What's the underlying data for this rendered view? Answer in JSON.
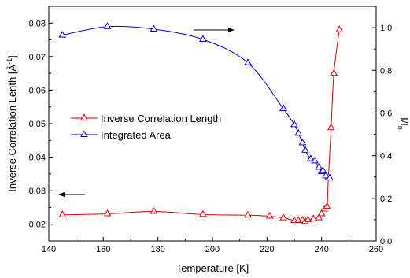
{
  "chart_data": {
    "type": "line",
    "xlabel": "Temperature [K]",
    "ylabel": "Inverse Correlation Lenth [Å",
    "ylabel_sup": "-1",
    "ylabel_end": "]",
    "y2label": "I/I",
    "y2label_sub": "n",
    "xlim": [
      140,
      260
    ],
    "ylim": [
      0.015,
      0.085
    ],
    "y2lim": [
      0.0,
      1.1
    ],
    "x_ticks": [
      140,
      160,
      180,
      200,
      220,
      240,
      260
    ],
    "y_ticks": [
      0.02,
      0.03,
      0.04,
      0.05,
      0.06,
      0.07,
      0.08
    ],
    "y2_ticks": [
      0.0,
      0.2,
      0.4,
      0.6,
      0.8,
      1.0
    ],
    "legend_position": "center-left",
    "grid": false,
    "series": [
      {
        "name": "Inverse Correlation Length",
        "axis": "left",
        "color": "#e00000",
        "marker": "triangle-open",
        "x": [
          145,
          161.5,
          178.5,
          196.5,
          213,
          221,
          226,
          230,
          231.5,
          233,
          234,
          235,
          237,
          239,
          240,
          241,
          242,
          242.5,
          243.5,
          244.5,
          246.5
        ],
        "y": [
          0.0228,
          0.0231,
          0.0238,
          0.0229,
          0.0227,
          0.0224,
          0.0219,
          0.0211,
          0.0211,
          0.0212,
          0.0208,
          0.0213,
          0.0216,
          0.0219,
          0.0231,
          0.0245,
          0.0253,
          0.034,
          0.0488,
          0.065,
          0.078
        ]
      },
      {
        "name": "Integrated Area",
        "axis": "right",
        "color": "#0000e0",
        "marker": "triangle-open",
        "x": [
          145,
          161.5,
          178.5,
          196.5,
          213,
          226,
          230,
          231.5,
          233,
          234,
          236,
          237.5,
          239,
          240,
          240.5,
          241.5,
          243
        ],
        "y": [
          0.965,
          1.005,
          0.993,
          0.945,
          0.835,
          0.62,
          0.545,
          0.505,
          0.46,
          0.425,
          0.385,
          0.375,
          0.345,
          0.325,
          0.33,
          0.305,
          0.295
        ]
      }
    ],
    "annotations": [
      "arrow-left-series-to-left-axis",
      "arrow-right-series-to-right-axis"
    ]
  }
}
